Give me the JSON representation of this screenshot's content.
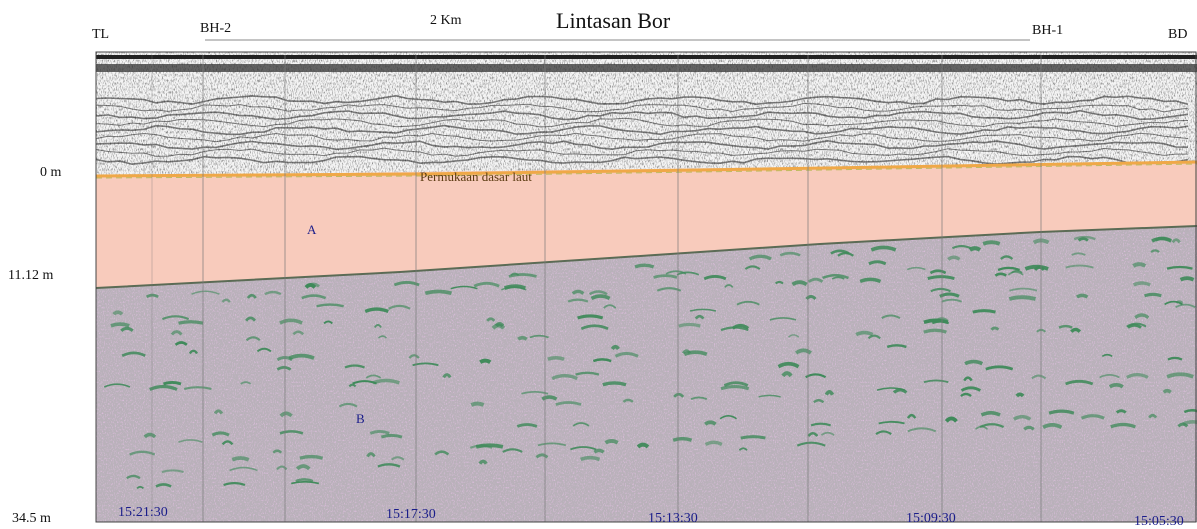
{
  "title": "Lintasan Bor",
  "scale_label": "2 Km",
  "stations": {
    "tl": "TL",
    "bh2": "BH-2",
    "bh1": "BH-1",
    "bd": "BD"
  },
  "depths": [
    "0 m",
    "11.12 m",
    "34.5 m"
  ],
  "seafloor_label": "Permukaan dasar laut",
  "layers": {
    "a": "A",
    "b": "B"
  },
  "times": [
    "15:21:30",
    "15:17:30",
    "15:13:30",
    "15:09:30",
    "15:05:30"
  ],
  "colors": {
    "layer_a": "#f8cbbc",
    "layer_a_top": "#f2b766",
    "layer_b": "#b8aeb8",
    "layer_b_speckle": "#d98fd6",
    "reflector": "#3f8a5a",
    "water_record": "#ffffff",
    "record_dark": "#1a1a1a",
    "label_blue": "#1a1d8a"
  }
}
